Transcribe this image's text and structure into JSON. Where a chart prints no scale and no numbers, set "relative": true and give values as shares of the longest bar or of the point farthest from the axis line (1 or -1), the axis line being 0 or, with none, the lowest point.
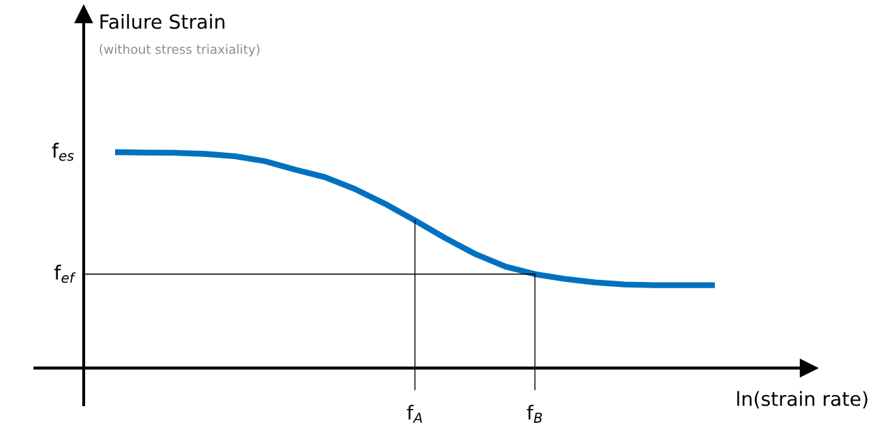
{
  "chart_data": {
    "type": "line",
    "relative": true,
    "title": "Failure Strain",
    "xlabel": "ln(strain rate)",
    "subtitle": "(without stress triaxiality)",
    "categories": [
      null,
      null,
      null,
      null,
      null,
      null,
      null,
      null,
      null,
      null,
      "f$_{A}$",
      null,
      null,
      null,
      "f$_{B}$",
      null,
      null,
      null,
      null,
      null,
      null
    ],
    "series": [
      {
        "color": "#0070c0",
        "values": [
          1.0,
          0.998,
          0.997,
          0.992,
          0.981,
          0.958,
          0.919,
          0.884,
          0.829,
          0.761,
          0.684,
          0.603,
          0.529,
          0.471,
          0.435,
          0.413,
          0.397,
          0.387,
          0.384,
          0.384,
          0.384
        ]
      }
    ],
    "ref_lines": [
      {
        "axis": "y",
        "value": 0.435,
        "label": "f$_{ef}$",
        "color": "#000000"
      },
      {
        "axis": "x",
        "value": "f$_{A}$",
        "color": "#000000"
      },
      {
        "axis": "x",
        "value": "f$_{B}$",
        "color": "#000000"
      }
    ],
    "annotations": [
      "f$_{es}$"
    ],
    "marker": "none",
    "line_style": "solid"
  }
}
